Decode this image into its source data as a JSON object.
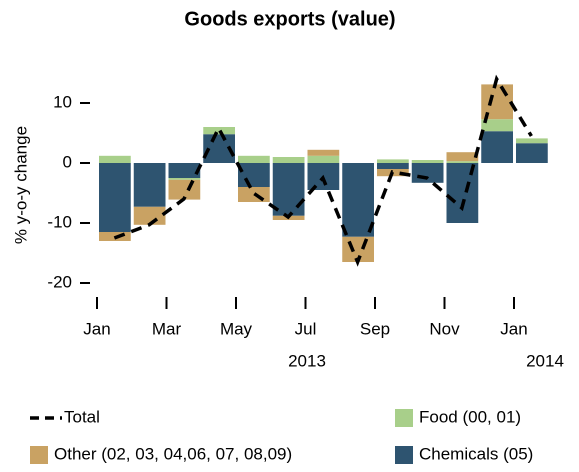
{
  "chart_data": {
    "type": "bar",
    "stacked": true,
    "title": "Goods exports (value)",
    "ylabel": "% y-o-y change",
    "categories": [
      "Jan",
      null,
      "Mar",
      null,
      "May",
      null,
      "Jul",
      null,
      "Sep",
      null,
      "Nov",
      null,
      "Jan"
    ],
    "annotations": [
      "2013",
      "2014"
    ],
    "series": [
      {
        "name": "Chemicals (05)",
        "color": "#2e5470",
        "values": [
          -11.5,
          -7.3,
          -2.5,
          4.8,
          -4,
          -8.8,
          -4.5,
          -12.3,
          -1,
          -3.3,
          -10,
          5.3,
          3.3
        ]
      },
      {
        "name": "Food (00, 01)",
        "color": "#a8cf8a",
        "values": [
          1.2,
          0,
          -0.3,
          1.2,
          1.2,
          1,
          1.2,
          0,
          0.6,
          0.5,
          0.3,
          2,
          0.8
        ]
      },
      {
        "name": "Other (02, 03, 04,06, 07, 08,09)",
        "color": "#c9a263",
        "values": [
          -1.5,
          -3,
          -3.3,
          0,
          -2.5,
          -0.7,
          1,
          -4.2,
          -1.2,
          0,
          1.5,
          5.8,
          0
        ]
      },
      {
        "name": "Total",
        "type": "line",
        "color": "#000000",
        "values": [
          -12.5,
          -10.3,
          -6,
          5.8,
          -5,
          -9,
          -2.5,
          -16.5,
          -1.5,
          -2.5,
          -7.5,
          14,
          4.5
        ]
      }
    ],
    "ylim": [
      -22,
      15
    ],
    "yticks": [
      -20,
      -10,
      0,
      10
    ]
  }
}
